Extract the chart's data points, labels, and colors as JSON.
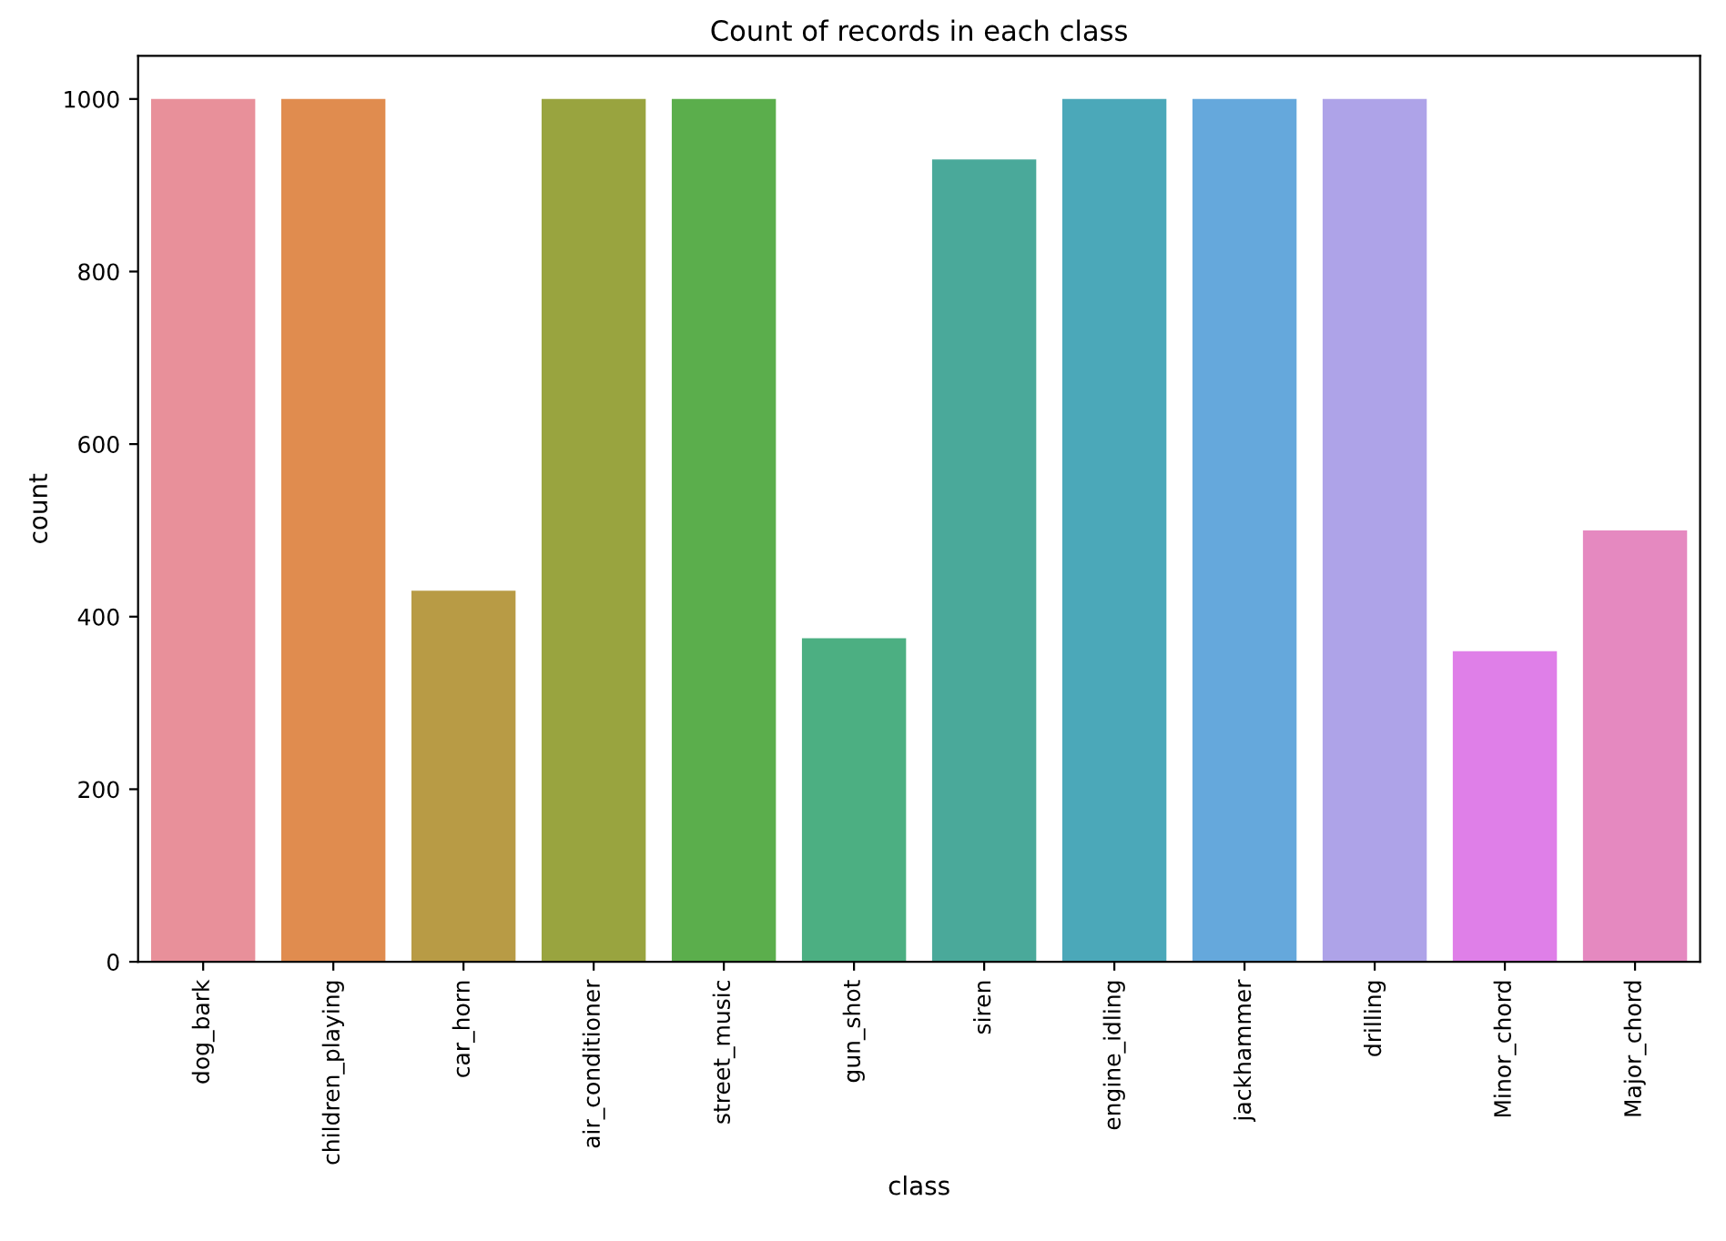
{
  "chart_data": {
    "type": "bar",
    "title": "Count of records in each class",
    "xlabel": "class",
    "ylabel": "count",
    "categories": [
      "dog_bark",
      "children_playing",
      "car_horn",
      "air_conditioner",
      "street_music",
      "gun_shot",
      "siren",
      "engine_idling",
      "jackhammer",
      "drilling",
      "Minor_chord",
      "Major_chord"
    ],
    "values": [
      1000,
      1000,
      430,
      1000,
      1000,
      375,
      930,
      1000,
      1000,
      1000,
      360,
      500
    ],
    "colors": [
      "#e8909a",
      "#e08c4f",
      "#b89b45",
      "#99a43f",
      "#5bae4c",
      "#4caf82",
      "#4aa99a",
      "#4ba8b9",
      "#65a8dc",
      "#aea3e8",
      "#df7fe8",
      "#e589c0"
    ],
    "ylim": [
      0,
      1050
    ],
    "yticks": [
      0,
      200,
      400,
      600,
      800,
      1000
    ],
    "grid": false
  }
}
